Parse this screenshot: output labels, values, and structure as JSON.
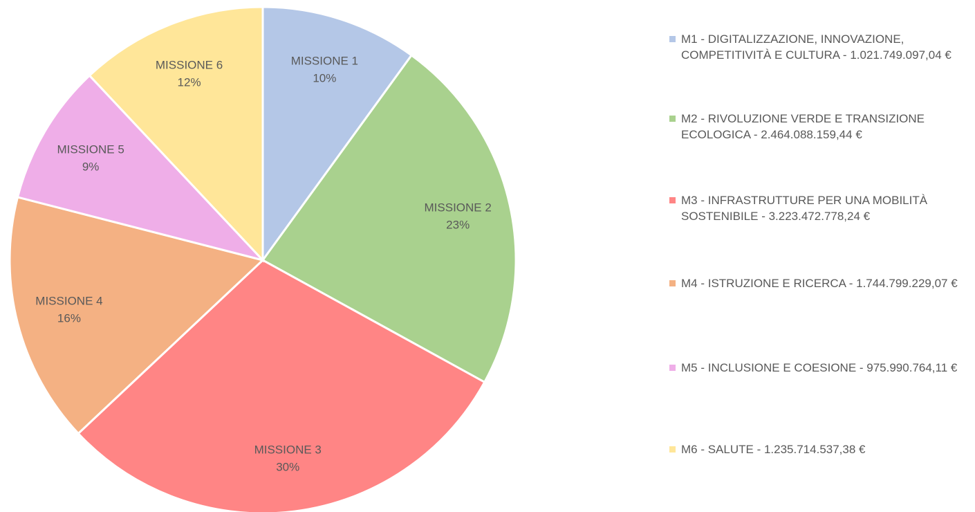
{
  "chart_data": {
    "type": "pie",
    "categories": [
      "MISSIONE 1",
      "MISSIONE 2",
      "MISSIONE 3",
      "MISSIONE 4",
      "MISSIONE 5",
      "MISSIONE 6"
    ],
    "values": [
      10,
      23,
      30,
      16,
      9,
      12
    ],
    "value_labels": [
      "10%",
      "23%",
      "30%",
      "16%",
      "9%",
      "12%"
    ],
    "legend": [
      "M1 - DIGITALIZZAZIONE, INNOVAZIONE, COMPETITIVITÀ E CULTURA - 1.021.749.097,04 €",
      "M2 - RIVOLUZIONE VERDE E TRANSIZIONE ECOLOGICA - 2.464.088.159,44 €",
      "M3 - INFRASTRUTTURE PER UNA MOBILITÀ SOSTENIBILE - 3.223.472.778,24 €",
      "M4 - ISTRUZIONE E RICERCA - 1.744.799.229,07 €",
      "M5 - INCLUSIONE E COESIONE - 975.990.764,11 €",
      "M6 - SALUTE - 1.235.714.537,38 €"
    ],
    "colors": [
      "#b4c7e7",
      "#a9d18e",
      "#ff8585",
      "#f4b183",
      "#efaee8",
      "#ffe699"
    ],
    "legend_position": "right"
  }
}
